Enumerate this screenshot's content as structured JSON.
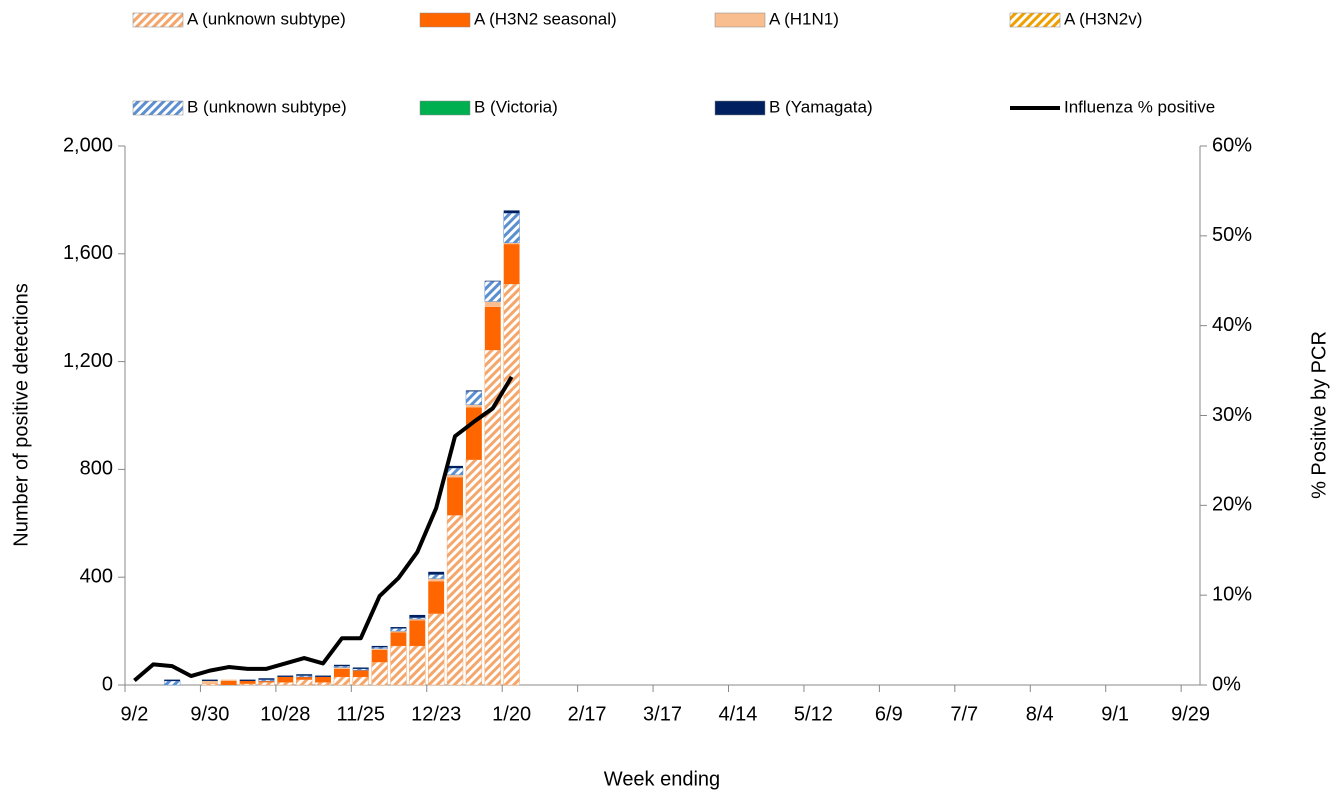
{
  "chart_data": {
    "type": "bar",
    "stacked": true,
    "x_label": "Week ending",
    "y_label": "Number of positive detections",
    "y2_label": "% Positive by PCR",
    "categories": [
      "9/2",
      null,
      null,
      null,
      "9/30",
      null,
      null,
      null,
      "10/28",
      null,
      null,
      null,
      "11/25",
      null,
      null,
      null,
      "12/23",
      null,
      null,
      null,
      "1/20",
      null,
      null,
      null,
      "2/17",
      null,
      null,
      null,
      "3/17",
      null,
      null,
      null,
      "4/14",
      null,
      null,
      null,
      "5/12",
      null,
      null,
      null,
      "6/9",
      null,
      null,
      null,
      "7/7",
      null,
      null,
      null,
      "8/4",
      null,
      null,
      null,
      "9/1",
      null,
      null,
      null,
      "9/29"
    ],
    "ylim": [
      0,
      2000
    ],
    "yticks": [
      0,
      400,
      800,
      {
        "value": 1200,
        "label": "1,200"
      },
      {
        "value": 1600,
        "label": "1,600"
      },
      {
        "value": 2000,
        "label": "2,000"
      }
    ],
    "y2lim": [
      0,
      60
    ],
    "y2ticks": [
      {
        "value": 0,
        "label": "0%"
      },
      {
        "value": 10,
        "label": "10%"
      },
      {
        "value": 20,
        "label": "20%"
      },
      {
        "value": 30,
        "label": "30%"
      },
      {
        "value": 40,
        "label": "40%"
      },
      {
        "value": 50,
        "label": "50%"
      },
      {
        "value": 60,
        "label": "60%"
      }
    ],
    "series": [
      {
        "name": "A (unknown subtype)",
        "color": "#f4a66b",
        "pattern": "hatch",
        "values": [
          0,
          0,
          0,
          0,
          5,
          0,
          5,
          10,
          10,
          20,
          10,
          30,
          30,
          85,
          145,
          145,
          265,
          630,
          836,
          1243,
          1488,
          null,
          null,
          null,
          null,
          null,
          null,
          null,
          null,
          null,
          null,
          null,
          null,
          null,
          null,
          null,
          null,
          null,
          null,
          null,
          null,
          null,
          null,
          null,
          null,
          null,
          null,
          null,
          null,
          null,
          null,
          null,
          null,
          null,
          null,
          null,
          null
        ]
      },
      {
        "name": "A (H3N2 seasonal)",
        "color": "#ff6600",
        "values": [
          0,
          0,
          0,
          0,
          0,
          15,
          10,
          5,
          20,
          10,
          20,
          30,
          25,
          45,
          50,
          95,
          120,
          140,
          194,
          160,
          148,
          null,
          null,
          null,
          null,
          null,
          null,
          null,
          null,
          null,
          null,
          null,
          null,
          null,
          null,
          null,
          null,
          null,
          null,
          null,
          null,
          null,
          null,
          null,
          null,
          null,
          null,
          null,
          null,
          null,
          null,
          null,
          null,
          null,
          null,
          null,
          null
        ]
      },
      {
        "name": "A (H1N1)",
        "color": "#f9be8f",
        "values": [
          0,
          0,
          0,
          0,
          10,
          5,
          0,
          0,
          0,
          0,
          0,
          5,
          0,
          5,
          5,
          5,
          10,
          10,
          10,
          20,
          5,
          null,
          null,
          null,
          null,
          null,
          null,
          null,
          null,
          null,
          null,
          null,
          null,
          null,
          null,
          null,
          null,
          null,
          null,
          null,
          null,
          null,
          null,
          null,
          null,
          null,
          null,
          null,
          null,
          null,
          null,
          null,
          null,
          null,
          null,
          null,
          null
        ]
      },
      {
        "name": "A (H3N2v)",
        "color": "#f0a000",
        "pattern": "hatch",
        "values": [
          0,
          0,
          0,
          0,
          0,
          0,
          0,
          0,
          0,
          0,
          0,
          0,
          0,
          0,
          0,
          0,
          0,
          0,
          0,
          0,
          0,
          null,
          null,
          null,
          null,
          null,
          null,
          null,
          null,
          null,
          null,
          null,
          null,
          null,
          null,
          null,
          null,
          null,
          null,
          null,
          null,
          null,
          null,
          null,
          null,
          null,
          null,
          null,
          null,
          null,
          null,
          null,
          null,
          null,
          null,
          null,
          null
        ]
      },
      {
        "name": "B (unknown subtype)",
        "color": "#5b8fd0",
        "pattern": "hatch",
        "values": [
          0,
          0,
          15,
          0,
          0,
          0,
          0,
          5,
          0,
          5,
          0,
          5,
          5,
          5,
          10,
          5,
          15,
          25,
          50,
          75,
          110,
          null,
          null,
          null,
          null,
          null,
          null,
          null,
          null,
          null,
          null,
          null,
          null,
          null,
          null,
          null,
          null,
          null,
          null,
          null,
          null,
          null,
          null,
          null,
          null,
          null,
          null,
          null,
          null,
          null,
          null,
          null,
          null,
          null,
          null,
          null,
          null
        ]
      },
      {
        "name": "B (Victoria)",
        "color": "#00b050",
        "values": [
          0,
          0,
          0,
          0,
          0,
          0,
          0,
          0,
          0,
          0,
          0,
          0,
          0,
          0,
          0,
          0,
          0,
          0,
          0,
          0,
          0,
          null,
          null,
          null,
          null,
          null,
          null,
          null,
          null,
          null,
          null,
          null,
          null,
          null,
          null,
          null,
          null,
          null,
          null,
          null,
          null,
          null,
          null,
          null,
          null,
          null,
          null,
          null,
          null,
          null,
          null,
          null,
          null,
          null,
          null,
          null,
          null
        ]
      },
      {
        "name": "B (Yamagata)",
        "color": "#002060",
        "values": [
          0,
          0,
          5,
          0,
          5,
          0,
          5,
          5,
          5,
          5,
          5,
          5,
          5,
          5,
          5,
          10,
          10,
          8,
          3,
          2,
          10,
          null,
          null,
          null,
          null,
          null,
          null,
          null,
          null,
          null,
          null,
          null,
          null,
          null,
          null,
          null,
          null,
          null,
          null,
          null,
          null,
          null,
          null,
          null,
          null,
          null,
          null,
          null,
          null,
          null,
          null,
          null,
          null,
          null,
          null,
          null,
          null
        ]
      },
      {
        "name": "Influenza % positive",
        "color": "#000000",
        "type": "line",
        "axis": "y2",
        "values": [
          0.5,
          2.3,
          2.1,
          1.0,
          1.6,
          2.0,
          1.8,
          1.8,
          2.4,
          3.0,
          2.4,
          5.2,
          5.2,
          9.9,
          11.9,
          14.8,
          19.7,
          27.7,
          29.3,
          30.8,
          34.3,
          null,
          null,
          null,
          null,
          null,
          null,
          null,
          null,
          null,
          null,
          null,
          null,
          null,
          null,
          null,
          null,
          null,
          null,
          null,
          null,
          null,
          null,
          null,
          null,
          null,
          null,
          null,
          null,
          null,
          null,
          null,
          null,
          null,
          null,
          null,
          null
        ]
      }
    ]
  }
}
